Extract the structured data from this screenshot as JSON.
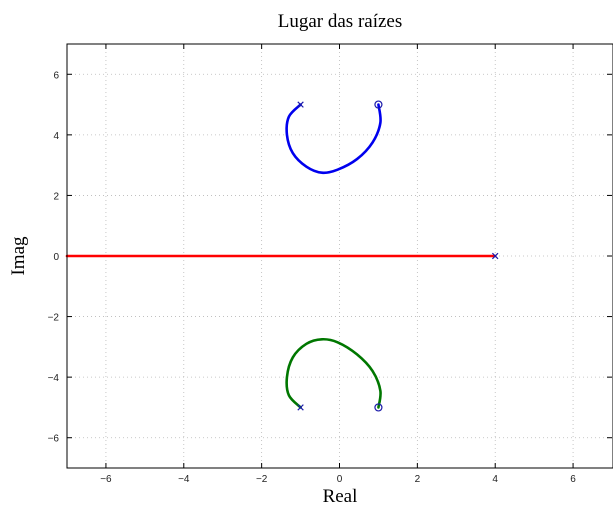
{
  "chart_data": {
    "type": "line",
    "title": "Lugar das raízes",
    "xlabel": "Real",
    "ylabel": "Imag",
    "xlim": [
      -7,
      7
    ],
    "ylim": [
      -7,
      7
    ],
    "xticks": [
      -6,
      -4,
      -2,
      0,
      2,
      4,
      6
    ],
    "yticks": [
      -6,
      -4,
      -2,
      0,
      2,
      4,
      6
    ],
    "grid": true,
    "poles": [
      {
        "x": -1,
        "y": 5
      },
      {
        "x": -1,
        "y": -5
      },
      {
        "x": 4,
        "y": 0
      }
    ],
    "zeros": [
      {
        "x": 1,
        "y": 5
      },
      {
        "x": 1,
        "y": -5
      }
    ],
    "series": [
      {
        "color": "#0000ee",
        "points": [
          [
            -1,
            5
          ],
          [
            -1.3,
            4.6
          ],
          [
            -1.35,
            4.0
          ],
          [
            -1.2,
            3.4
          ],
          [
            -0.85,
            2.95
          ],
          [
            -0.45,
            2.75
          ],
          [
            -0.05,
            2.85
          ],
          [
            0.45,
            3.2
          ],
          [
            0.85,
            3.75
          ],
          [
            1.05,
            4.4
          ],
          [
            1,
            5
          ]
        ]
      },
      {
        "color": "#007700",
        "points": [
          [
            -1,
            -5
          ],
          [
            -1.3,
            -4.6
          ],
          [
            -1.35,
            -4.0
          ],
          [
            -1.2,
            -3.35
          ],
          [
            -0.85,
            -2.9
          ],
          [
            -0.45,
            -2.75
          ],
          [
            -0.05,
            -2.85
          ],
          [
            0.45,
            -3.25
          ],
          [
            0.85,
            -3.8
          ],
          [
            1.05,
            -4.45
          ],
          [
            1,
            -5
          ]
        ]
      },
      {
        "color": "#ff0000",
        "points": [
          [
            4,
            0
          ],
          [
            -7,
            0
          ]
        ]
      }
    ],
    "colors": {
      "pole_marker": "#1a1aaa",
      "zero_marker": "#1a1aaa",
      "grid": "#b8b8b8",
      "frame": "#000000"
    }
  }
}
